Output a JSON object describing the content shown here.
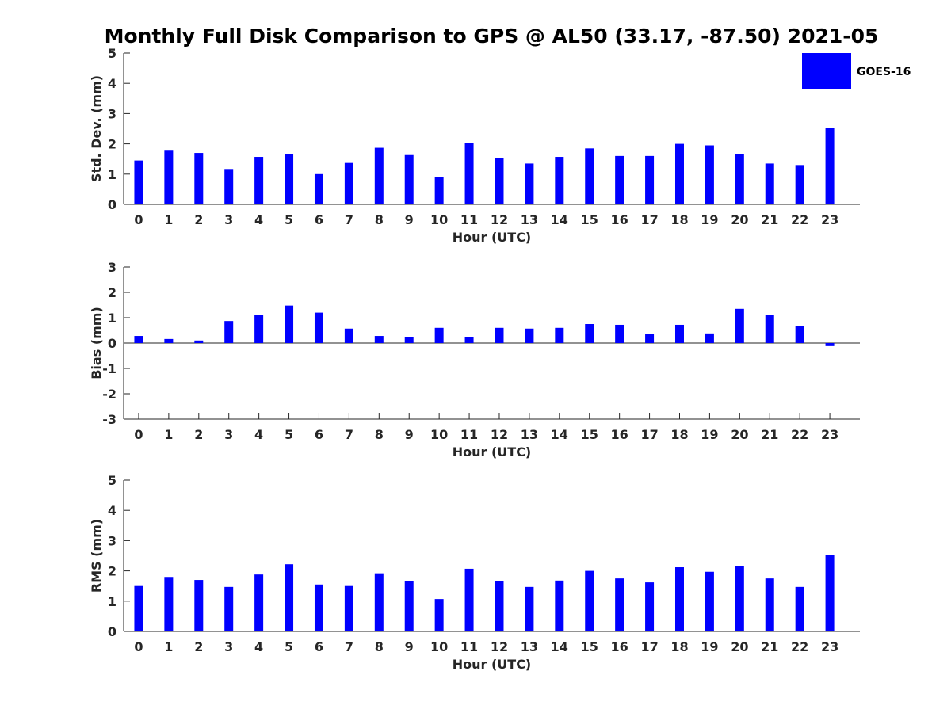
{
  "title": "Monthly Full Disk Comparison to GPS @ AL50 (33.17, -87.50) 2021-05",
  "legend": {
    "label": "GOES-16",
    "color": "#0000ff",
    "placement": "top-right"
  },
  "chart_data": [
    {
      "type": "bar",
      "name": "std",
      "xlabel": "Hour (UTC)",
      "ylabel": "Std. Dev. (mm)",
      "ylim": [
        0,
        5
      ],
      "yticks": [
        "0",
        "1",
        "2",
        "3",
        "4",
        "5"
      ],
      "categories": [
        "0",
        "1",
        "2",
        "3",
        "4",
        "5",
        "6",
        "7",
        "8",
        "9",
        "10",
        "11",
        "12",
        "13",
        "14",
        "15",
        "16",
        "17",
        "18",
        "19",
        "20",
        "21",
        "22",
        "23"
      ],
      "series": [
        {
          "name": "GOES-16",
          "color": "#0000ff",
          "values": [
            1.45,
            1.8,
            1.7,
            1.17,
            1.57,
            1.67,
            1.0,
            1.37,
            1.87,
            1.63,
            0.9,
            2.03,
            1.53,
            1.35,
            1.57,
            1.85,
            1.6,
            1.6,
            2.0,
            1.95,
            1.67,
            1.35,
            1.3,
            2.53
          ]
        }
      ]
    },
    {
      "type": "bar",
      "name": "bias",
      "xlabel": "Hour (UTC)",
      "ylabel": "Bias (mm)",
      "ylim": [
        -3,
        3
      ],
      "yticks": [
        "-3",
        "-2",
        "-1",
        "0",
        "1",
        "2",
        "3"
      ],
      "categories": [
        "0",
        "1",
        "2",
        "3",
        "4",
        "5",
        "6",
        "7",
        "8",
        "9",
        "10",
        "11",
        "12",
        "13",
        "14",
        "15",
        "16",
        "17",
        "18",
        "19",
        "20",
        "21",
        "22",
        "23"
      ],
      "series": [
        {
          "name": "GOES-16",
          "color": "#0000ff",
          "values": [
            0.28,
            0.16,
            0.1,
            0.87,
            1.1,
            1.48,
            1.2,
            0.57,
            0.28,
            0.22,
            0.6,
            0.25,
            0.6,
            0.57,
            0.6,
            0.75,
            0.72,
            0.37,
            0.72,
            0.38,
            1.35,
            1.1,
            0.68,
            -0.12
          ]
        }
      ]
    },
    {
      "type": "bar",
      "name": "rms",
      "xlabel": "Hour (UTC)",
      "ylabel": "RMS (mm)",
      "ylim": [
        0,
        5
      ],
      "yticks": [
        "0",
        "1",
        "2",
        "3",
        "4",
        "5"
      ],
      "categories": [
        "0",
        "1",
        "2",
        "3",
        "4",
        "5",
        "6",
        "7",
        "8",
        "9",
        "10",
        "11",
        "12",
        "13",
        "14",
        "15",
        "16",
        "17",
        "18",
        "19",
        "20",
        "21",
        "22",
        "23"
      ],
      "series": [
        {
          "name": "GOES-16",
          "color": "#0000ff",
          "values": [
            1.5,
            1.8,
            1.7,
            1.47,
            1.88,
            2.22,
            1.55,
            1.5,
            1.92,
            1.65,
            1.07,
            2.07,
            1.65,
            1.47,
            1.68,
            2.0,
            1.75,
            1.62,
            2.12,
            1.97,
            2.15,
            1.75,
            1.47,
            2.53
          ]
        }
      ]
    }
  ]
}
